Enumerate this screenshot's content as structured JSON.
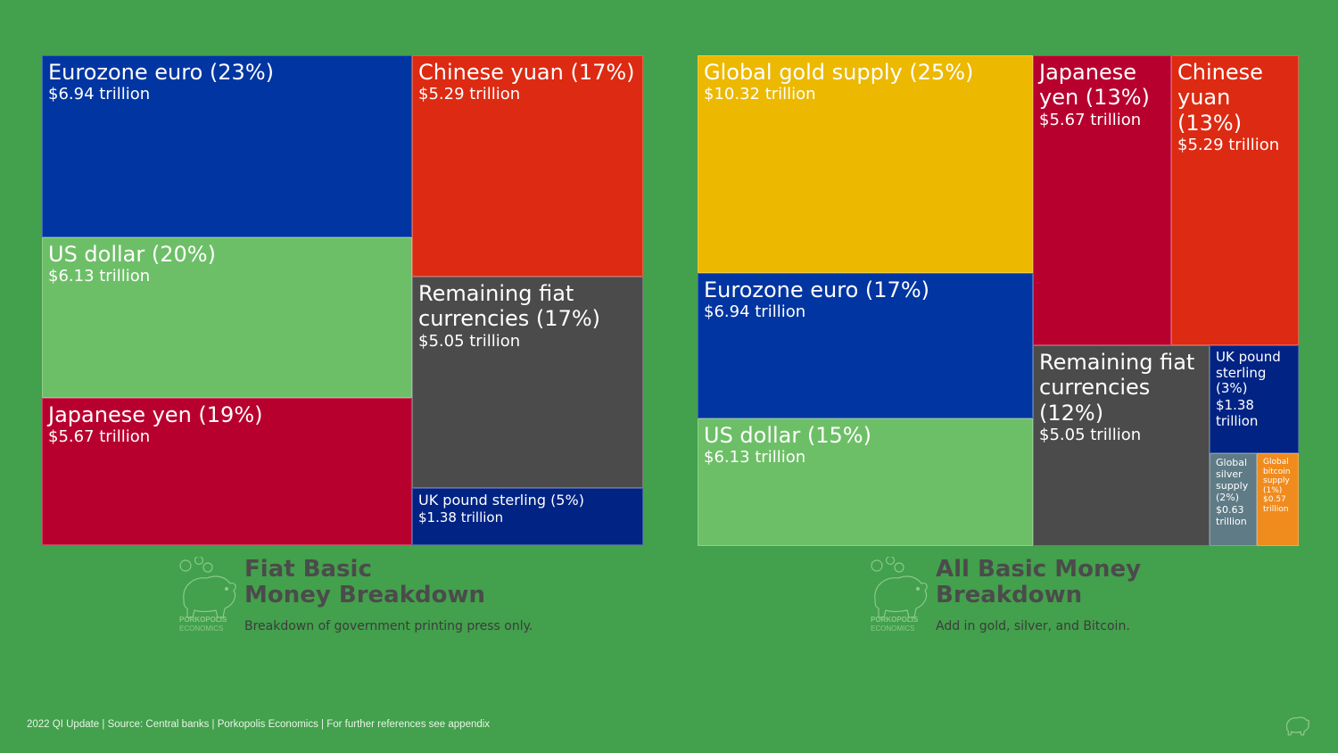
{
  "colors": {
    "background": "#43a04c",
    "euro": "#0135a1",
    "yuan": "#dd2a12",
    "usd": "#6dbf67",
    "yen": "#b8002f",
    "remaining": "#4b4b4b",
    "gbp": "#002384",
    "gold": "#ecb800",
    "silver": "#5f7b86",
    "bitcoin": "#f08b1d"
  },
  "chart_data": [
    {
      "type": "treemap",
      "title": "Fiat Basic Money Breakdown",
      "subtitle": "Breakdown of government printing press only.",
      "unit": "trillion USD",
      "items": [
        {
          "name": "Eurozone euro",
          "label": "Eurozone euro (23%)",
          "value_text": "$6.94 trillion",
          "value": 6.94,
          "percent": 23,
          "color": "#0135a1"
        },
        {
          "name": "Chinese yuan",
          "label": "Chinese yuan (17%)",
          "value_text": "$5.29 trillion",
          "value": 5.29,
          "percent": 17,
          "color": "#dd2a12"
        },
        {
          "name": "US dollar",
          "label": "US dollar (20%)",
          "value_text": "$6.13 trillion",
          "value": 6.13,
          "percent": 20,
          "color": "#6dbf67"
        },
        {
          "name": "Remaining fiat currencies",
          "label": "Remaining fiat currencies (17%)",
          "value_text": "$5.05 trillion",
          "value": 5.05,
          "percent": 17,
          "color": "#4b4b4b"
        },
        {
          "name": "Japanese yen",
          "label": "Japanese yen (19%)",
          "value_text": "$5.67 trillion",
          "value": 5.67,
          "percent": 19,
          "color": "#b8002f"
        },
        {
          "name": "UK pound sterling",
          "label": "UK pound sterling (5%)",
          "value_text": "$1.38 trillion",
          "value": 1.38,
          "percent": 5,
          "color": "#002384"
        }
      ]
    },
    {
      "type": "treemap",
      "title": "All Basic Money Breakdown",
      "subtitle": "Add in gold, silver, and Bitcoin.",
      "unit": "trillion USD",
      "items": [
        {
          "name": "Global gold supply",
          "label": "Global gold supply (25%)",
          "value_text": "$10.32 trillion",
          "value": 10.32,
          "percent": 25,
          "color": "#ecb800"
        },
        {
          "name": "Japanese yen",
          "label": "Japanese yen (13%)",
          "value_text": "$5.67 trillion",
          "value": 5.67,
          "percent": 13,
          "color": "#b8002f"
        },
        {
          "name": "Chinese yuan",
          "label": "Chinese yuan (13%)",
          "value_text": "$5.29 trillion",
          "value": 5.29,
          "percent": 13,
          "color": "#dd2a12"
        },
        {
          "name": "Eurozone euro",
          "label": "Eurozone euro (17%)",
          "value_text": "$6.94 trillion",
          "value": 6.94,
          "percent": 17,
          "color": "#0135a1"
        },
        {
          "name": "Remaining fiat currencies",
          "label": "Remaining fiat currencies (12%)",
          "value_text": "$5.05 trillion",
          "value": 5.05,
          "percent": 12,
          "color": "#4b4b4b"
        },
        {
          "name": "UK pound sterling",
          "label": "UK pound sterling (3%)",
          "value_text": "$1.38 trillion",
          "value": 1.38,
          "percent": 3,
          "color": "#002384"
        },
        {
          "name": "US dollar",
          "label": "US dollar (15%)",
          "value_text": "$6.13 trillion",
          "value": 6.13,
          "percent": 15,
          "color": "#6dbf67"
        },
        {
          "name": "Global silver supply",
          "label": "Global silver supply (2%)",
          "value_text": "$0.63 trillion",
          "value": 0.63,
          "percent": 2,
          "color": "#5f7b86"
        },
        {
          "name": "Global bitcoin supply",
          "label": "Global bitcoin supply (1%)",
          "value_text": "$0.57 trillion",
          "value": 0.57,
          "percent": 1,
          "color": "#f08b1d"
        }
      ]
    }
  ],
  "captions": {
    "left": {
      "title_line1": "Fiat Basic",
      "title_line2": "Money Breakdown",
      "subtitle": "Breakdown of government printing press only."
    },
    "right": {
      "title_line1": "All Basic Money",
      "title_line2": "Breakdown",
      "subtitle": "Add in gold, silver, and Bitcoin."
    }
  },
  "logo": {
    "name_line1": "PORKOPOLIS",
    "name_line2": "ECONOMICS",
    "icon": "piggy-bank-icon"
  },
  "footer": {
    "text": "2022 QI Update | Source: Central banks | Porkopolis Economics | For further references see appendix"
  }
}
